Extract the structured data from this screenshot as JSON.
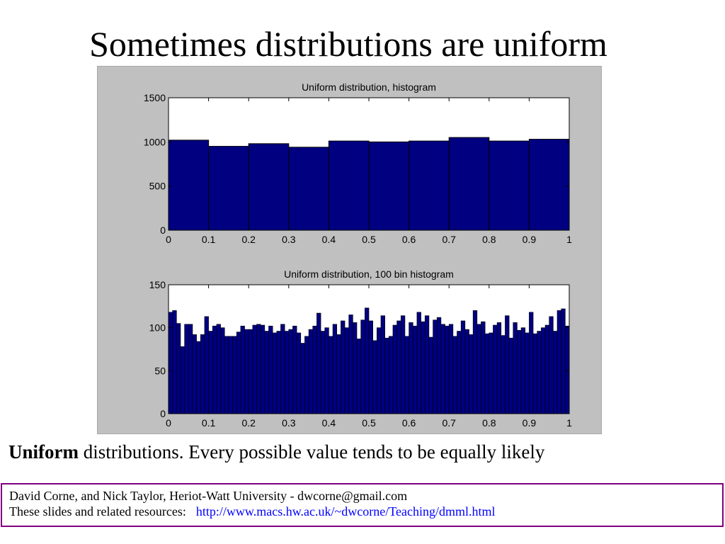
{
  "slide": {
    "title": "Sometimes distributions are uniform",
    "caption_bold": "Uniform",
    "caption_rest": " distributions.  Every possible value tends to be equally likely"
  },
  "footer": {
    "line1": "David Corne, and Nick Taylor,  Heriot-Watt University  -  dwcorne@gmail.com",
    "line2_label": "These slides and related resources:",
    "link": "http://www.macs.hw.ac.uk/~dwcorne/Teaching/dmml.html"
  },
  "colors": {
    "bar": "#000080",
    "figure_bg": "#c0c0c0",
    "axes_bg": "#ffffff",
    "footer_border": "#800080",
    "link": "#0000ff"
  },
  "chart_data": [
    {
      "type": "bar",
      "title": "Uniform distribution, histogram",
      "xlim": [
        0,
        1
      ],
      "ylim": [
        0,
        1500
      ],
      "xticks": [
        "0",
        "0.1",
        "0.2",
        "0.3",
        "0.4",
        "0.5",
        "0.6",
        "0.7",
        "0.8",
        "0.9",
        "1"
      ],
      "yticks": [
        "0",
        "500",
        "1000",
        "1500"
      ],
      "bin_width": 0.1,
      "x": [
        0.05,
        0.15,
        0.25,
        0.35,
        0.45,
        0.55,
        0.65,
        0.75,
        0.85,
        0.95
      ],
      "values": [
        1020,
        950,
        980,
        940,
        1010,
        1000,
        1010,
        1050,
        1010,
        1030
      ],
      "grid": false
    },
    {
      "type": "bar",
      "title": "Uniform distribution, 100 bin histogram",
      "xlim": [
        0,
        1
      ],
      "ylim": [
        0,
        150
      ],
      "xticks": [
        "0",
        "0.1",
        "0.2",
        "0.3",
        "0.4",
        "0.5",
        "0.6",
        "0.7",
        "0.8",
        "0.9",
        "1"
      ],
      "yticks": [
        "0",
        "50",
        "100",
        "150"
      ],
      "bin_width": 0.01,
      "values": [
        118,
        120,
        105,
        78,
        104,
        104,
        92,
        84,
        92,
        113,
        96,
        102,
        104,
        100,
        90,
        90,
        90,
        95,
        102,
        98,
        98,
        103,
        104,
        103,
        96,
        102,
        94,
        96,
        104,
        96,
        98,
        102,
        94,
        82,
        90,
        98,
        102,
        117,
        96,
        100,
        90,
        104,
        92,
        108,
        100,
        115,
        106,
        87,
        109,
        123,
        108,
        85,
        100,
        114,
        88,
        90,
        103,
        108,
        114,
        90,
        106,
        102,
        118,
        107,
        114,
        89,
        109,
        112,
        104,
        102,
        104,
        90,
        96,
        108,
        98,
        92,
        120,
        104,
        107,
        93,
        94,
        103,
        106,
        91,
        114,
        88,
        106,
        97,
        100,
        94,
        118,
        93,
        96,
        100,
        103,
        113,
        96,
        120,
        122,
        102
      ]
    }
  ]
}
